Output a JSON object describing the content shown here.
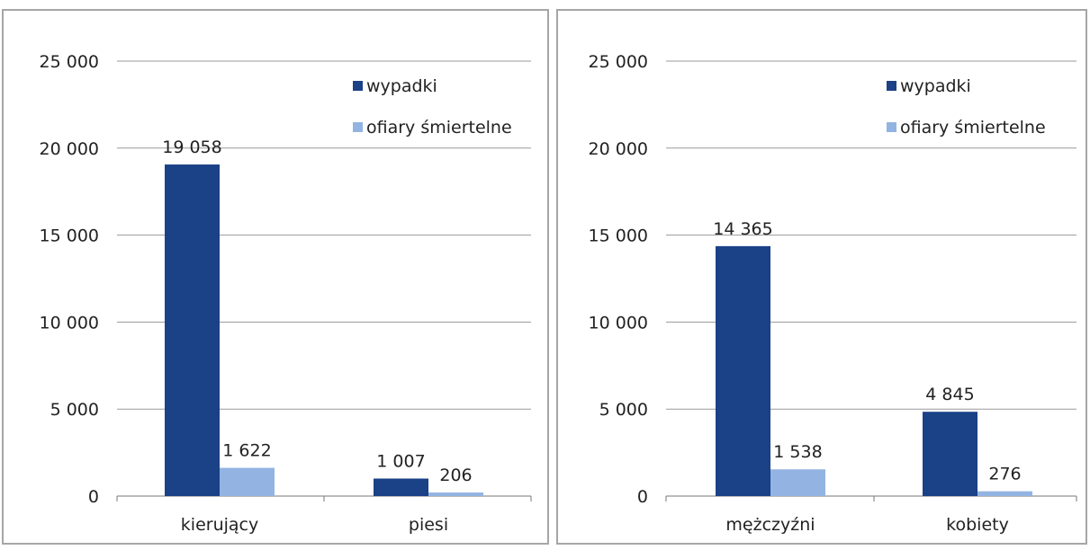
{
  "chart_data": [
    {
      "type": "bar",
      "categories": [
        "kierujący",
        "piesi"
      ],
      "series": [
        {
          "name": "wypadki",
          "values": [
            19058,
            1007
          ],
          "color": "#1b4187"
        },
        {
          "name": "ofiary śmiertelne",
          "values": [
            1622,
            206
          ],
          "color": "#93b4e2"
        }
      ],
      "value_labels": [
        [
          "19 058",
          "1 007"
        ],
        [
          "1 622",
          "206"
        ]
      ],
      "ylim": [
        0,
        25000
      ],
      "yticks": [
        "0",
        "5 000",
        "10 000",
        "15 000",
        "20 000",
        "25 000"
      ],
      "grid": true,
      "legend_position": "top-right",
      "xlabel": "",
      "ylabel": "",
      "title": ""
    },
    {
      "type": "bar",
      "categories": [
        "mężczyźni",
        "kobiety"
      ],
      "series": [
        {
          "name": "wypadki",
          "values": [
            14365,
            4845
          ],
          "color": "#1b4187"
        },
        {
          "name": "ofiary śmiertelne",
          "values": [
            1538,
            276
          ],
          "color": "#93b4e2"
        }
      ],
      "value_labels": [
        [
          "14 365",
          "4 845"
        ],
        [
          "1 538",
          "276"
        ]
      ],
      "ylim": [
        0,
        25000
      ],
      "yticks": [
        "0",
        "5 000",
        "10 000",
        "15 000",
        "20 000",
        "25 000"
      ],
      "grid": true,
      "legend_position": "top-right",
      "xlabel": "",
      "ylabel": "",
      "title": ""
    }
  ]
}
